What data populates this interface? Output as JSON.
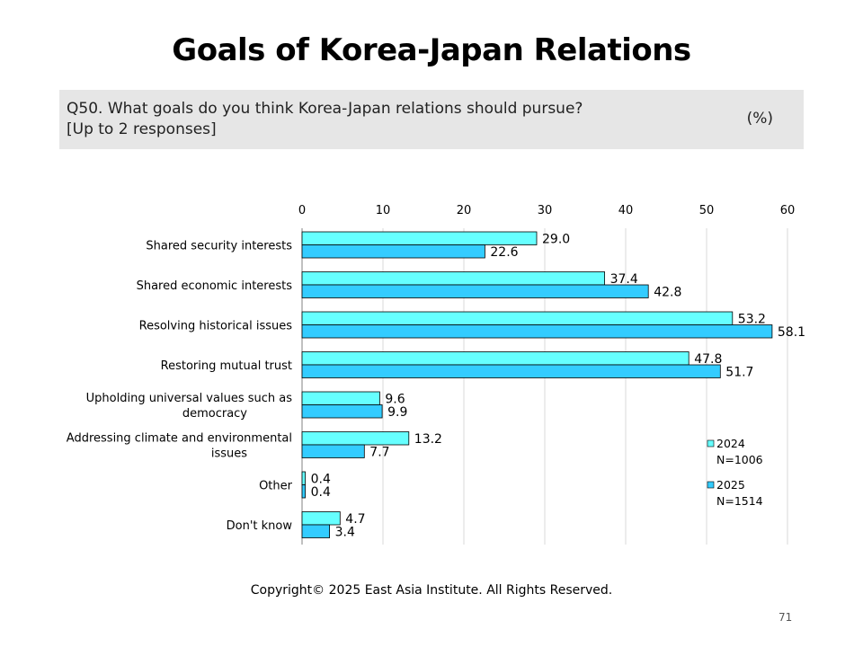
{
  "title": "Goals of Korea-Japan Relations",
  "question": {
    "line1": "Q50. What goals do you think Korea-Japan relations should pursue?",
    "line2": "[Up to 2 responses]",
    "unit": "(%)"
  },
  "chart_data": {
    "type": "bar",
    "orientation": "horizontal",
    "categories": [
      [
        "Shared security interests"
      ],
      [
        "Shared economic interests"
      ],
      [
        "Resolving historical issues"
      ],
      [
        "Restoring mutual trust"
      ],
      [
        "Upholding universal values such as",
        "democracy"
      ],
      [
        "Addressing climate and environmental",
        "issues"
      ],
      [
        "Other"
      ],
      [
        "Don't know"
      ]
    ],
    "series": [
      {
        "name": "2024",
        "sample": "N=1006",
        "color": "#66ffff",
        "values": [
          29.0,
          37.4,
          53.2,
          47.8,
          9.6,
          13.2,
          0.4,
          4.7
        ]
      },
      {
        "name": "2025",
        "sample": "N=1514",
        "color": "#33ccff",
        "values": [
          22.6,
          42.8,
          58.1,
          51.7,
          9.9,
          7.7,
          0.4,
          3.4
        ]
      }
    ],
    "xlim": [
      0,
      60
    ],
    "xticks": [
      0,
      10,
      20,
      30,
      40,
      50,
      60
    ],
    "grid": true,
    "legend": "bottom-right"
  },
  "footer": {
    "copyright": "Copyright© 2025 East Asia Institute. All Rights Reserved.",
    "page": "71"
  }
}
